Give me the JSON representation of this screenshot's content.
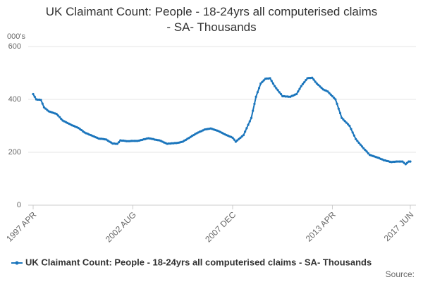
{
  "chart_data": {
    "type": "line",
    "title": "UK Claimant Count: People - 18-24yrs all computerised claims - SA- Thousands",
    "y_label": "000's",
    "source": "Source:",
    "ylim": [
      0,
      600
    ],
    "yticks": [
      0,
      200,
      400,
      600
    ],
    "grid": true,
    "legend": "bottom-left",
    "categories": [
      "1997 APR",
      null,
      null,
      null,
      null,
      null,
      null,
      null,
      null,
      null,
      null,
      null,
      null,
      null,
      null,
      null,
      null,
      null,
      null,
      null,
      null,
      null,
      null,
      null,
      null,
      null,
      null,
      null,
      null,
      null,
      null,
      null,
      null,
      null,
      null,
      null,
      null,
      null,
      null,
      null,
      null,
      null,
      null,
      null,
      null,
      null,
      null,
      null,
      null,
      null,
      null,
      null,
      null,
      null,
      null,
      null,
      null,
      null,
      null,
      null,
      null,
      null,
      null,
      null,
      "2002 AUG",
      null,
      null,
      null,
      null,
      null,
      null,
      null,
      null,
      null,
      null,
      null,
      null,
      null,
      null,
      null,
      null,
      null,
      null,
      null,
      null,
      null,
      null,
      null,
      null,
      null,
      null,
      null,
      null,
      null,
      null,
      null,
      null,
      null,
      null,
      null,
      null,
      null,
      null,
      null,
      null,
      null,
      null,
      null,
      null,
      null,
      null,
      null,
      null,
      null,
      null,
      null,
      null,
      null,
      null,
      null,
      null,
      null,
      null,
      null,
      null,
      null,
      null,
      null,
      "2007 DEC",
      null,
      null,
      null,
      null,
      null,
      null,
      null,
      null,
      null,
      null,
      null,
      null,
      null,
      null,
      null,
      null,
      null,
      null,
      null,
      null,
      null,
      null,
      null,
      null,
      null,
      null,
      null,
      null,
      null,
      null,
      null,
      null,
      null,
      null,
      null,
      null,
      null,
      null,
      null,
      null,
      null,
      null,
      null,
      null,
      null,
      null,
      null,
      null,
      null,
      null,
      null,
      null,
      null,
      null,
      null,
      null,
      null,
      null,
      null,
      null,
      null,
      null,
      null,
      "2013 APR",
      null,
      null,
      null,
      null,
      null,
      null,
      null,
      null,
      null,
      null,
      null,
      null,
      null,
      null,
      null,
      null,
      null,
      null,
      null,
      null,
      null,
      null,
      null,
      null,
      null,
      null,
      null,
      null,
      null,
      null,
      null,
      null,
      null,
      null,
      null,
      null,
      null,
      null,
      null,
      null,
      null,
      null,
      null,
      null,
      null,
      null,
      null,
      null,
      null,
      "2017 JUN"
    ],
    "series": [
      {
        "name": "UK Claimant Count: People - 18-24yrs all computerised claims - SA- Thousands",
        "color": "#1a75bc",
        "values": [
          420,
          410,
          400,
          399,
          399,
          398,
          384,
          370,
          365,
          360,
          355,
          353,
          351,
          349,
          347,
          345,
          339,
          333,
          326,
          320,
          317,
          314,
          311,
          308,
          305,
          302,
          300,
          297,
          295,
          292,
          288,
          284,
          279,
          275,
          272,
          270,
          267,
          265,
          262,
          260,
          257,
          255,
          252,
          251,
          251,
          250,
          249,
          248,
          244,
          240,
          237,
          233,
          233,
          232,
          232,
          238,
          245,
          244,
          244,
          243,
          242,
          242,
          242,
          243,
          243,
          243,
          243,
          243,
          244,
          246,
          247,
          249,
          250,
          252,
          253,
          252,
          251,
          250,
          248,
          247,
          246,
          245,
          243,
          240,
          237,
          235,
          232,
          233,
          233,
          234,
          234,
          235,
          235,
          236,
          237,
          239,
          240,
          244,
          247,
          251,
          254,
          258,
          262,
          265,
          269,
          272,
          275,
          278,
          280,
          283,
          286,
          287,
          288,
          289,
          290,
          288,
          286,
          284,
          282,
          280,
          277,
          274,
          271,
          268,
          265,
          263,
          260,
          258,
          255,
          248,
          240,
          245,
          250,
          255,
          260,
          265,
          278,
          291,
          304,
          317,
          330,
          357,
          383,
          410,
          427,
          443,
          460,
          466,
          472,
          478,
          479,
          479,
          480,
          470,
          460,
          450,
          442,
          435,
          427,
          420,
          412,
          412,
          411,
          411,
          410,
          410,
          413,
          415,
          418,
          420,
          430,
          440,
          450,
          458,
          465,
          473,
          480,
          481,
          481,
          482,
          475,
          467,
          460,
          455,
          449,
          444,
          438,
          435,
          433,
          430,
          424,
          418,
          412,
          406,
          400,
          383,
          365,
          348,
          330,
          324,
          318,
          312,
          306,
          300,
          288,
          275,
          263,
          250,
          243,
          236,
          229,
          222,
          215,
          209,
          203,
          196,
          190,
          188,
          186,
          184,
          182,
          180,
          178,
          175,
          173,
          170,
          169,
          167,
          166,
          164,
          163,
          164,
          164,
          165,
          165,
          165,
          165,
          165,
          160,
          155,
          160,
          165,
          165
        ]
      }
    ]
  }
}
